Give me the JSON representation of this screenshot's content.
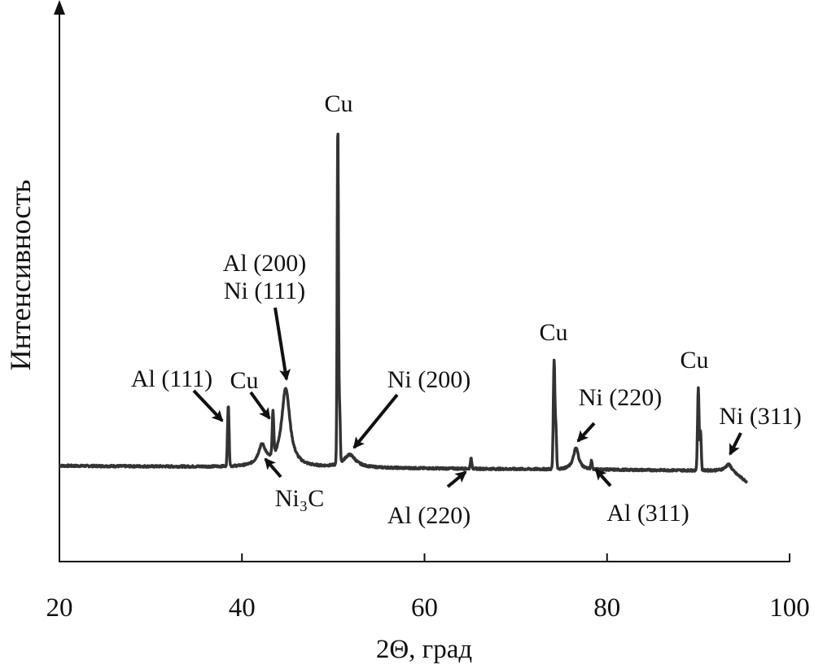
{
  "chart_data": {
    "type": "line",
    "title": "",
    "xlabel": "2Θ, град",
    "ylabel": "Интенсивность",
    "xlim": [
      20,
      100
    ],
    "ylim": [
      0,
      100
    ],
    "xticks": [
      "20",
      "40",
      "60",
      "80",
      "100"
    ],
    "grid": false,
    "legend": "none",
    "line_color": "#333333",
    "x_range_measured": [
      20,
      95.3
    ],
    "baseline_intensity": 17.3,
    "peaks": [
      {
        "position": 38.5,
        "intensity": 28.4,
        "width": 0.12,
        "label": "Al (111)"
      },
      {
        "position": 42.2,
        "intensity": 20.9,
        "width": 0.5,
        "label": "Ni₃C"
      },
      {
        "position": 43.4,
        "intensity": 25.0,
        "width": 0.12,
        "label": "Cu"
      },
      {
        "position": 44.8,
        "intensity": 31.5,
        "width": 0.55,
        "label": "Al (200) / Ni (111)"
      },
      {
        "position": 50.5,
        "intensity": 78.7,
        "width": 0.1,
        "label": "Cu"
      },
      {
        "position": 51.8,
        "intensity": 19.6,
        "width": 0.8,
        "label": "Ni (200)"
      },
      {
        "position": 65.1,
        "intensity": 19.1,
        "width": 0.12,
        "label": "Al (220)"
      },
      {
        "position": 74.2,
        "intensity": 37.0,
        "width": 0.12,
        "label": "Cu"
      },
      {
        "position": 76.6,
        "intensity": 21.2,
        "width": 0.35,
        "label": "Ni (220)"
      },
      {
        "position": 78.3,
        "intensity": 18.8,
        "width": 0.1,
        "label": "Al (311)"
      },
      {
        "position": 90.0,
        "intensity": 32.2,
        "width": 0.12,
        "label": "Cu"
      },
      {
        "position": 93.3,
        "intensity": 18.4,
        "width": 0.4,
        "label": "Ni (311)"
      }
    ],
    "annotations": [
      {
        "text": "Al (111)"
      },
      {
        "text": "Cu"
      },
      {
        "text": "Al (200)"
      },
      {
        "text": "Ni (111)"
      },
      {
        "text": "Cu"
      },
      {
        "text": "Ni (200)"
      },
      {
        "text": "Ni₃C"
      },
      {
        "text": "Al (220)"
      },
      {
        "text": "Cu"
      },
      {
        "text": "Ni (220)"
      },
      {
        "text": "Al (311)"
      },
      {
        "text": "Cu"
      },
      {
        "text": "Ni (311)"
      }
    ]
  }
}
